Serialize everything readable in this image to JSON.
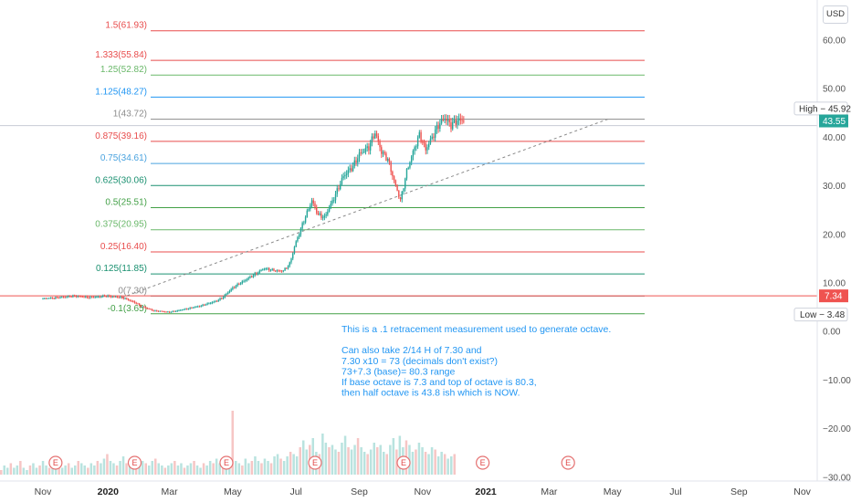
{
  "currency_button": "USD",
  "chart_data": {
    "type": "candlestick",
    "title": "",
    "y_axis": {
      "ticks": [
        "60.00",
        "50.00",
        "40.00",
        "30.00",
        "20.00",
        "10.00",
        "0.00",
        "−10.00",
        "−20.00",
        "−30.00"
      ],
      "tick_values": [
        60,
        50,
        40,
        30,
        20,
        10,
        0,
        -10,
        -20,
        -30
      ],
      "range": [
        -30,
        66.5
      ]
    },
    "x_axis": {
      "labels": [
        {
          "text": "Nov",
          "bold": false
        },
        {
          "text": "2020",
          "bold": true
        },
        {
          "text": "Mar",
          "bold": false
        },
        {
          "text": "May",
          "bold": false
        },
        {
          "text": "Jul",
          "bold": false
        },
        {
          "text": "Sep",
          "bold": false
        },
        {
          "text": "Nov",
          "bold": false
        },
        {
          "text": "2021",
          "bold": true
        },
        {
          "text": "Mar",
          "bold": false
        },
        {
          "text": "May",
          "bold": false
        },
        {
          "text": "Jul",
          "bold": false
        },
        {
          "text": "Sep",
          "bold": false
        },
        {
          "text": "Nov",
          "bold": false
        }
      ]
    },
    "fib_levels": [
      {
        "label": "1.5(61.93)",
        "value": 61.93,
        "color": "#e84c4c"
      },
      {
        "label": "1.333(55.84)",
        "value": 55.84,
        "color": "#e84c4c"
      },
      {
        "label": "1.25(52.82)",
        "value": 52.82,
        "color": "#6ab86a"
      },
      {
        "label": "1.125(48.27)",
        "value": 48.27,
        "color": "#2196f3"
      },
      {
        "label": "1(43.72)",
        "value": 43.72,
        "color": "#8c8c8c"
      },
      {
        "label": "0.875(39.16)",
        "value": 39.16,
        "color": "#e84c4c"
      },
      {
        "label": "0.75(34.61)",
        "value": 34.61,
        "color": "#4aa3df"
      },
      {
        "label": "0.625(30.06)",
        "value": 30.06,
        "color": "#1a9070"
      },
      {
        "label": "0.5(25.51)",
        "value": 25.51,
        "color": "#43a047"
      },
      {
        "label": "0.375(20.95)",
        "value": 20.95,
        "color": "#6ab86a"
      },
      {
        "label": "0.25(16.40)",
        "value": 16.4,
        "color": "#e84c4c"
      },
      {
        "label": "0.125(11.85)",
        "value": 11.85,
        "color": "#1a9070"
      },
      {
        "label": "0(7.30)",
        "value": 7.3,
        "color": "#8c8c8c"
      },
      {
        "label": "-0.1(3.65)",
        "value": 3.65,
        "color": "#43a047"
      }
    ],
    "price_path": [
      [
        0.0,
        6.8
      ],
      [
        0.5,
        7.0
      ],
      [
        1.0,
        7.3
      ],
      [
        1.5,
        7.0
      ],
      [
        2.0,
        7.3
      ],
      [
        2.5,
        7.0
      ],
      [
        2.9,
        6.0
      ],
      [
        3.1,
        5.2
      ],
      [
        3.5,
        4.3
      ],
      [
        4.0,
        4.0
      ],
      [
        4.5,
        4.6
      ],
      [
        5.0,
        5.3
      ],
      [
        5.5,
        6.3
      ],
      [
        5.7,
        7.1
      ],
      [
        6.0,
        9.0
      ],
      [
        6.5,
        11.0
      ],
      [
        7.0,
        13.0
      ],
      [
        7.3,
        12.6
      ],
      [
        7.6,
        12.5
      ],
      [
        7.8,
        14.0
      ],
      [
        8.0,
        18.5
      ],
      [
        8.2,
        22.0
      ],
      [
        8.5,
        27.0
      ],
      [
        8.7,
        24.0
      ],
      [
        8.9,
        23.5
      ],
      [
        9.2,
        27.5
      ],
      [
        9.5,
        32.0
      ],
      [
        9.8,
        34.0
      ],
      [
        10.0,
        36.5
      ],
      [
        10.3,
        38.0
      ],
      [
        10.5,
        41.0
      ],
      [
        10.7,
        37.0
      ],
      [
        10.9,
        35.5
      ],
      [
        11.1,
        31.0
      ],
      [
        11.3,
        27.0
      ],
      [
        11.5,
        33.0
      ],
      [
        11.7,
        37.0
      ],
      [
        11.9,
        40.5
      ],
      [
        12.1,
        37.5
      ],
      [
        12.3,
        40.0
      ],
      [
        12.5,
        42.5
      ],
      [
        12.7,
        44.0
      ],
      [
        12.9,
        42.5
      ],
      [
        13.1,
        43.5
      ],
      [
        13.3,
        43.55
      ]
    ],
    "volume": [
      2,
      4,
      3,
      5,
      3,
      4,
      6,
      3,
      2,
      4,
      5,
      3,
      4,
      6,
      4,
      3,
      5,
      7,
      4,
      3,
      4,
      5,
      3,
      4,
      6,
      5,
      4,
      3,
      5,
      4,
      6,
      5,
      7,
      9,
      6,
      5,
      4,
      6,
      8,
      5,
      4,
      3,
      5,
      4,
      6,
      5,
      4,
      6,
      7,
      5,
      4,
      3,
      4,
      5,
      6,
      4,
      5,
      3,
      4,
      5,
      6,
      4,
      3,
      5,
      4,
      6,
      5,
      7,
      5,
      4,
      6,
      5,
      28,
      6,
      5,
      4,
      7,
      5,
      6,
      8,
      6,
      5,
      7,
      6,
      5,
      8,
      9,
      7,
      6,
      8,
      10,
      9,
      8,
      12,
      15,
      11,
      13,
      16,
      10,
      9,
      18,
      14,
      12,
      13,
      11,
      10,
      14,
      17,
      12,
      11,
      13,
      16,
      12,
      10,
      9,
      11,
      14,
      12,
      13,
      10,
      9,
      13,
      16,
      11,
      17,
      12,
      15,
      13,
      10,
      11,
      14,
      12,
      10,
      9,
      12,
      11,
      8,
      10,
      9,
      7,
      8,
      9
    ],
    "trendline": {
      "from": [
        2.5,
        7.0
      ],
      "to": [
        17.85,
        43.72
      ]
    },
    "earnings_markers": [
      0.4,
      2.9,
      5.8,
      8.6,
      11.4,
      13.9,
      16.6
    ],
    "high_label": "High − 45.92",
    "high_value": 45.92,
    "last_price": "43.55",
    "last_price_value": 43.55,
    "low_label": "Low − 3.48",
    "low_value": 3.48,
    "red_line_price": "7.34",
    "red_line_value": 7.34,
    "earnings_letter": "E"
  },
  "annotation": {
    "lines": [
      "This is a .1 retracement measurement used to generate octave.",
      "",
      "Can also take 2/14 H of 7.30 and",
      "7.30 x10 = 73 (decimals don't exist?)",
      "73+7.3 (base)= 80.3 range",
      "If base octave is 7.3 and top of octave is 80.3,",
      "then half octave is 43.8 ish which is NOW."
    ]
  },
  "colors": {
    "up": "#26a69a",
    "down": "#ef5350",
    "price_axis_bg": "#ffffff",
    "last_price_bg": "#26a69a",
    "red_line_bg": "#ef5350",
    "annotation": "#2196f3"
  }
}
